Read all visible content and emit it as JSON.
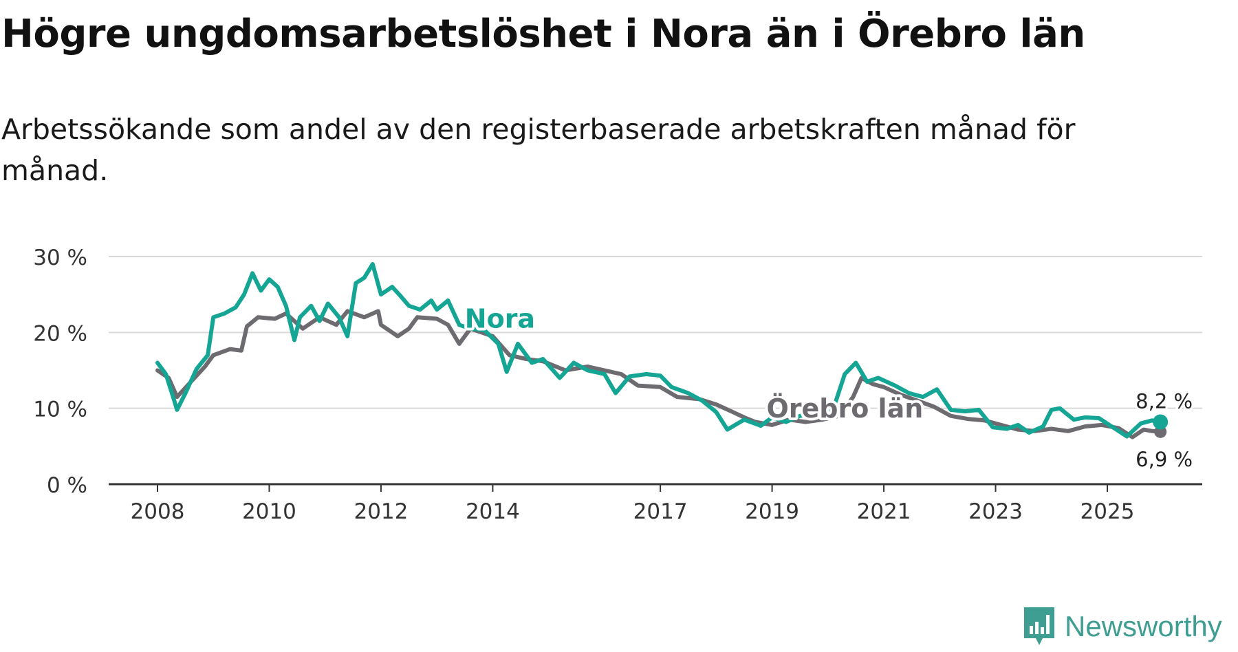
{
  "title": "Högre ungdomsarbetslöshet i Nora än i Örebro län",
  "subtitle": "Arbetssökande som andel av den registerbaserade arbetskraften månad för månad.",
  "brand": {
    "name": "Newsworthy",
    "logo_icon": "bar-chart-badge-icon",
    "color": "#3f9e92"
  },
  "chart_data": {
    "type": "line",
    "title": "Högre ungdomsarbetslöshet i Nora än i Örebro län",
    "xlabel": "",
    "ylabel": "",
    "xlim": [
      2007.9,
      2026.5
    ],
    "ylim": [
      0,
      30
    ],
    "grid": true,
    "y_ticks": [
      0,
      10,
      20,
      30
    ],
    "y_tick_labels": [
      "0 %",
      "10 %",
      "20 %",
      "30 %"
    ],
    "x_ticks": [
      2008,
      2010,
      2012,
      2014,
      2017,
      2019,
      2021,
      2023,
      2025
    ],
    "x_tick_labels": [
      "2008",
      "2010",
      "2012",
      "2014",
      "2017",
      "2019",
      "2021",
      "2023",
      "2025"
    ],
    "series": [
      {
        "name": "Örebro län",
        "color": "#6e6b70",
        "label": "Örebro län",
        "end_label": "6,9 %",
        "end_value": 6.9,
        "points": [
          [
            2008.0,
            15.0
          ],
          [
            2008.2,
            14.0
          ],
          [
            2008.35,
            11.5
          ],
          [
            2008.6,
            13.5
          ],
          [
            2008.85,
            15.5
          ],
          [
            2009.0,
            17.0
          ],
          [
            2009.3,
            17.8
          ],
          [
            2009.5,
            17.6
          ],
          [
            2009.6,
            20.8
          ],
          [
            2009.8,
            22.0
          ],
          [
            2010.1,
            21.8
          ],
          [
            2010.3,
            22.5
          ],
          [
            2010.6,
            20.5
          ],
          [
            2010.9,
            22.0
          ],
          [
            2011.2,
            21.0
          ],
          [
            2011.4,
            22.8
          ],
          [
            2011.7,
            22.0
          ],
          [
            2011.95,
            22.8
          ],
          [
            2012.0,
            21.0
          ],
          [
            2012.3,
            19.5
          ],
          [
            2012.5,
            20.5
          ],
          [
            2012.65,
            22.0
          ],
          [
            2013.0,
            21.8
          ],
          [
            2013.2,
            21.0
          ],
          [
            2013.4,
            18.5
          ],
          [
            2013.6,
            20.5
          ],
          [
            2014.0,
            19.5
          ],
          [
            2014.3,
            17.0
          ],
          [
            2014.6,
            16.5
          ],
          [
            2014.9,
            16.2
          ],
          [
            2015.3,
            15.0
          ],
          [
            2015.7,
            15.5
          ],
          [
            2016.0,
            15.0
          ],
          [
            2016.3,
            14.5
          ],
          [
            2016.6,
            13.0
          ],
          [
            2017.0,
            12.8
          ],
          [
            2017.3,
            11.5
          ],
          [
            2017.7,
            11.2
          ],
          [
            2018.0,
            10.5
          ],
          [
            2018.3,
            9.5
          ],
          [
            2018.5,
            8.8
          ],
          [
            2018.7,
            8.2
          ],
          [
            2019.0,
            7.8
          ],
          [
            2019.3,
            8.5
          ],
          [
            2019.6,
            8.2
          ],
          [
            2019.9,
            8.5
          ],
          [
            2020.2,
            9.0
          ],
          [
            2020.45,
            11.5
          ],
          [
            2020.6,
            14.0
          ],
          [
            2020.8,
            13.2
          ],
          [
            2021.0,
            12.8
          ],
          [
            2021.3,
            11.8
          ],
          [
            2021.6,
            11.0
          ],
          [
            2021.9,
            10.2
          ],
          [
            2022.2,
            9.0
          ],
          [
            2022.5,
            8.6
          ],
          [
            2022.8,
            8.4
          ],
          [
            2023.1,
            7.8
          ],
          [
            2023.4,
            7.2
          ],
          [
            2023.7,
            7.0
          ],
          [
            2024.0,
            7.3
          ],
          [
            2024.3,
            7.0
          ],
          [
            2024.6,
            7.6
          ],
          [
            2024.9,
            7.8
          ],
          [
            2025.2,
            7.4
          ],
          [
            2025.45,
            6.2
          ],
          [
            2025.65,
            7.2
          ],
          [
            2025.8,
            7.0
          ],
          [
            2025.95,
            6.9
          ]
        ]
      },
      {
        "name": "Nora",
        "color": "#14a594",
        "label": "Nora",
        "end_label": "8,2 %",
        "end_value": 8.2,
        "points": [
          [
            2008.0,
            16.0
          ],
          [
            2008.15,
            14.5
          ],
          [
            2008.3,
            11.0
          ],
          [
            2008.35,
            9.8
          ],
          [
            2008.5,
            12.0
          ],
          [
            2008.7,
            15.2
          ],
          [
            2008.9,
            17.0
          ],
          [
            2009.0,
            22.0
          ],
          [
            2009.2,
            22.5
          ],
          [
            2009.4,
            23.3
          ],
          [
            2009.55,
            25.0
          ],
          [
            2009.7,
            27.8
          ],
          [
            2009.85,
            25.5
          ],
          [
            2010.0,
            27.0
          ],
          [
            2010.15,
            26.0
          ],
          [
            2010.3,
            23.5
          ],
          [
            2010.45,
            19.0
          ],
          [
            2010.55,
            22.0
          ],
          [
            2010.75,
            23.5
          ],
          [
            2010.9,
            21.5
          ],
          [
            2011.05,
            23.8
          ],
          [
            2011.25,
            22.0
          ],
          [
            2011.4,
            19.5
          ],
          [
            2011.55,
            26.5
          ],
          [
            2011.7,
            27.2
          ],
          [
            2011.85,
            29.0
          ],
          [
            2012.0,
            25.0
          ],
          [
            2012.2,
            26.0
          ],
          [
            2012.35,
            24.8
          ],
          [
            2012.5,
            23.5
          ],
          [
            2012.7,
            23.0
          ],
          [
            2012.9,
            24.2
          ],
          [
            2013.0,
            23.0
          ],
          [
            2013.2,
            24.2
          ],
          [
            2013.4,
            21.0
          ],
          [
            2013.6,
            20.5
          ],
          [
            2013.85,
            20.3
          ],
          [
            2014.1,
            18.5
          ],
          [
            2014.25,
            14.8
          ],
          [
            2014.45,
            18.5
          ],
          [
            2014.7,
            16.0
          ],
          [
            2014.9,
            16.5
          ],
          [
            2015.2,
            14.0
          ],
          [
            2015.45,
            16.0
          ],
          [
            2015.7,
            15.0
          ],
          [
            2016.0,
            14.5
          ],
          [
            2016.2,
            12.0
          ],
          [
            2016.45,
            14.2
          ],
          [
            2016.75,
            14.5
          ],
          [
            2017.0,
            14.3
          ],
          [
            2017.2,
            12.8
          ],
          [
            2017.5,
            12.0
          ],
          [
            2017.75,
            11.0
          ],
          [
            2018.0,
            9.5
          ],
          [
            2018.2,
            7.2
          ],
          [
            2018.5,
            8.5
          ],
          [
            2018.8,
            7.7
          ],
          [
            2019.0,
            8.8
          ],
          [
            2019.25,
            8.2
          ],
          [
            2019.5,
            9.0
          ],
          [
            2019.8,
            9.5
          ],
          [
            2020.1,
            10.0
          ],
          [
            2020.3,
            14.5
          ],
          [
            2020.5,
            16.0
          ],
          [
            2020.7,
            13.5
          ],
          [
            2020.9,
            14.0
          ],
          [
            2021.2,
            13.0
          ],
          [
            2021.45,
            12.0
          ],
          [
            2021.7,
            11.5
          ],
          [
            2021.95,
            12.5
          ],
          [
            2022.2,
            9.8
          ],
          [
            2022.45,
            9.6
          ],
          [
            2022.7,
            9.8
          ],
          [
            2022.95,
            7.5
          ],
          [
            2023.2,
            7.3
          ],
          [
            2023.4,
            7.8
          ],
          [
            2023.6,
            6.8
          ],
          [
            2023.85,
            7.6
          ],
          [
            2024.0,
            9.8
          ],
          [
            2024.15,
            10.0
          ],
          [
            2024.4,
            8.5
          ],
          [
            2024.6,
            8.8
          ],
          [
            2024.85,
            8.7
          ],
          [
            2025.1,
            7.5
          ],
          [
            2025.35,
            6.3
          ],
          [
            2025.6,
            8.0
          ],
          [
            2025.8,
            8.4
          ],
          [
            2025.95,
            8.2
          ]
        ]
      }
    ]
  }
}
